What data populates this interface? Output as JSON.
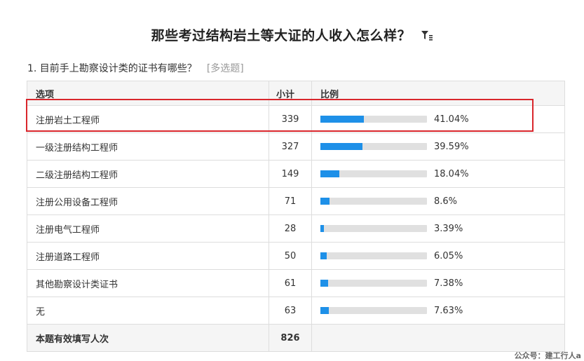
{
  "title": "那些考过结构岩土等大证的人收入怎么样？",
  "question": {
    "text": "1. 目前手上勘察设计类的证书有哪些？",
    "type": "[多选题]"
  },
  "table": {
    "headers": [
      "选项",
      "小计",
      "比例"
    ],
    "rows": [
      {
        "option": "注册岩土工程师",
        "count": "339",
        "percent_label": "41.04%",
        "percent": 41.04
      },
      {
        "option": "一级注册结构工程师",
        "count": "327",
        "percent_label": "39.59%",
        "percent": 39.59
      },
      {
        "option": "二级注册结构工程师",
        "count": "149",
        "percent_label": "18.04%",
        "percent": 18.04
      },
      {
        "option": "注册公用设备工程师",
        "count": "71",
        "percent_label": "8.6%",
        "percent": 8.6
      },
      {
        "option": "注册电气工程师",
        "count": "28",
        "percent_label": "3.39%",
        "percent": 3.39
      },
      {
        "option": "注册道路工程师",
        "count": "50",
        "percent_label": "6.05%",
        "percent": 6.05
      },
      {
        "option": "其他勘察设计类证书",
        "count": "61",
        "percent_label": "7.38%",
        "percent": 7.38
      },
      {
        "option": "无",
        "count": "63",
        "percent_label": "7.63%",
        "percent": 7.63
      }
    ],
    "footer": {
      "label": "本题有效填写人次",
      "total": "826"
    }
  },
  "watermark": "公众号：建工行人a",
  "icons": {
    "filter": "filter-icon"
  },
  "colors": {
    "bar_fill": "#1e90e8",
    "bar_track": "#e0e0e0",
    "highlight": "#d9262c"
  }
}
